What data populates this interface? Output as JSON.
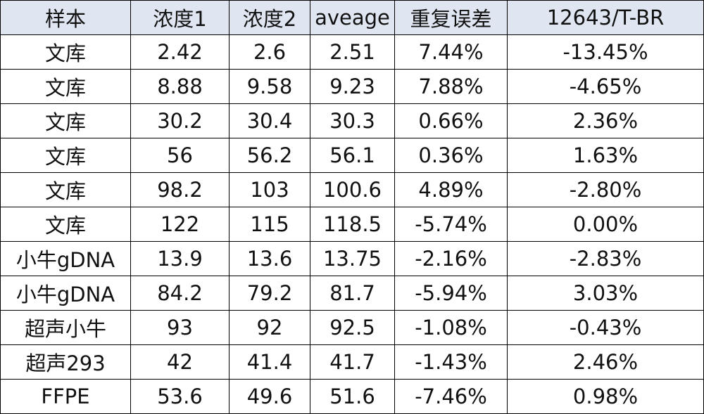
{
  "table": {
    "header": [
      "样本",
      "浓度1",
      "浓度2",
      "aveage",
      "重复误差",
      "12643/T-BR"
    ],
    "rows": [
      [
        "文库",
        "2.42",
        "2.6",
        "2.51",
        "7.44%",
        "-13.45%"
      ],
      [
        "文库",
        "8.88",
        "9.58",
        "9.23",
        "7.88%",
        "-4.65%"
      ],
      [
        "文库",
        "30.2",
        "30.4",
        "30.3",
        "0.66%",
        "2.36%"
      ],
      [
        "文库",
        "56",
        "56.2",
        "56.1",
        "0.36%",
        "1.63%"
      ],
      [
        "文库",
        "98.2",
        "103",
        "100.6",
        "4.89%",
        "-2.80%"
      ],
      [
        "文库",
        "122",
        "115",
        "118.5",
        "-5.74%",
        "0.00%"
      ],
      [
        "小牛gDNA",
        "13.9",
        "13.6",
        "13.75",
        "-2.16%",
        "-2.83%"
      ],
      [
        "小牛gDNA",
        "84.2",
        "79.2",
        "81.7",
        "-5.94%",
        "3.03%"
      ],
      [
        "超声小牛",
        "93",
        "92",
        "92.5",
        "-1.08%",
        "-0.43%"
      ],
      [
        "超声293",
        "42",
        "41.4",
        "41.7",
        "-1.43%",
        "2.46%"
      ],
      [
        "FFPE",
        "53.6",
        "49.6",
        "51.6",
        "-7.46%",
        "0.98%"
      ]
    ]
  }
}
